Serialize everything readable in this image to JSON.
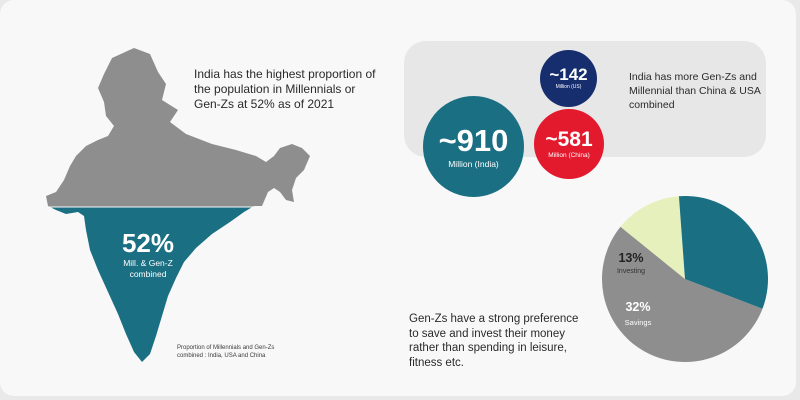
{
  "colors": {
    "teal": "#1a6f82",
    "grey": "#8e8e8e",
    "navy": "#162d6e",
    "red": "#e3192e",
    "light_green": "#e6f0bd"
  },
  "map": {
    "percent": "52%",
    "percent_label_line1": "Mill. & Gen-Z",
    "percent_label_line2": "combined",
    "filled_fraction": 0.52
  },
  "intro_text": "India has the highest proportion of the population in Millennials or Gen-Zs at 52% as of 2021",
  "caption_line1": "Proportion of Millennials and Gen-Zs",
  "caption_line2": "combined : India, USA and China",
  "circles": {
    "us": {
      "value": "~142",
      "label": "Million (US)"
    },
    "india": {
      "value": "~910",
      "label": "Million (India)"
    },
    "china": {
      "value": "~581",
      "label": "Million (China)"
    }
  },
  "gen_note": "India has more Gen-Zs and Millennial than China & USA combined",
  "savings_note": "Gen-Zs have a strong preference to save and invest their money rather than spending in leisure, fitness etc.",
  "chart_data": {
    "type": "pie",
    "slices": [
      {
        "label": "Investing",
        "value": 13
      },
      {
        "label": "Savings",
        "value": 32
      },
      {
        "label": "",
        "value": 55
      }
    ],
    "value_labels": [
      "13%",
      "32%"
    ]
  }
}
